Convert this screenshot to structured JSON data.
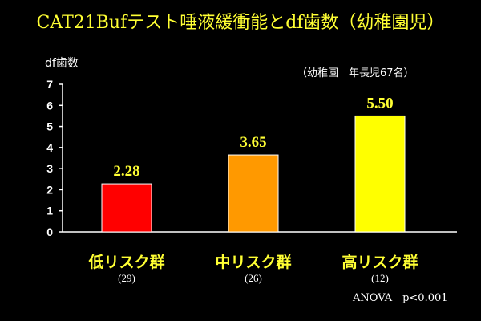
{
  "title": "CAT21Bufテスト唾液緩衝能とdf歯数（幼稚園児）",
  "subtitle": "（幼稚園　年長児67名）",
  "footnote": "ANOVA　p<0.001",
  "colors": {
    "background": "#000000",
    "title": "#ffff33",
    "text": "#ffffff",
    "category_label": "#ffff33",
    "bar_low": "#ff0000",
    "bar_mid": "#ff9900",
    "bar_high": "#ffff00"
  },
  "chart_data": {
    "type": "bar",
    "title": "CAT21Bufテスト唾液緩衝能とdf歯数（幼稚園児）",
    "xlabel": "",
    "ylabel": "df歯数",
    "ylim": [
      0,
      7
    ],
    "yticks": [
      "0",
      "1",
      "2",
      "3",
      "4",
      "5",
      "6",
      "7"
    ],
    "categories": [
      "低リスク群",
      "中リスク群",
      "高リスク群"
    ],
    "counts": [
      "(29)",
      "(26)",
      "(12)"
    ],
    "values": [
      2.28,
      3.65,
      5.5
    ],
    "value_labels": [
      "2.28",
      "3.65",
      "5.50"
    ],
    "bar_colors": [
      "#ff0000",
      "#ff9900",
      "#ffff00"
    ],
    "grid": false,
    "legend": "none"
  }
}
